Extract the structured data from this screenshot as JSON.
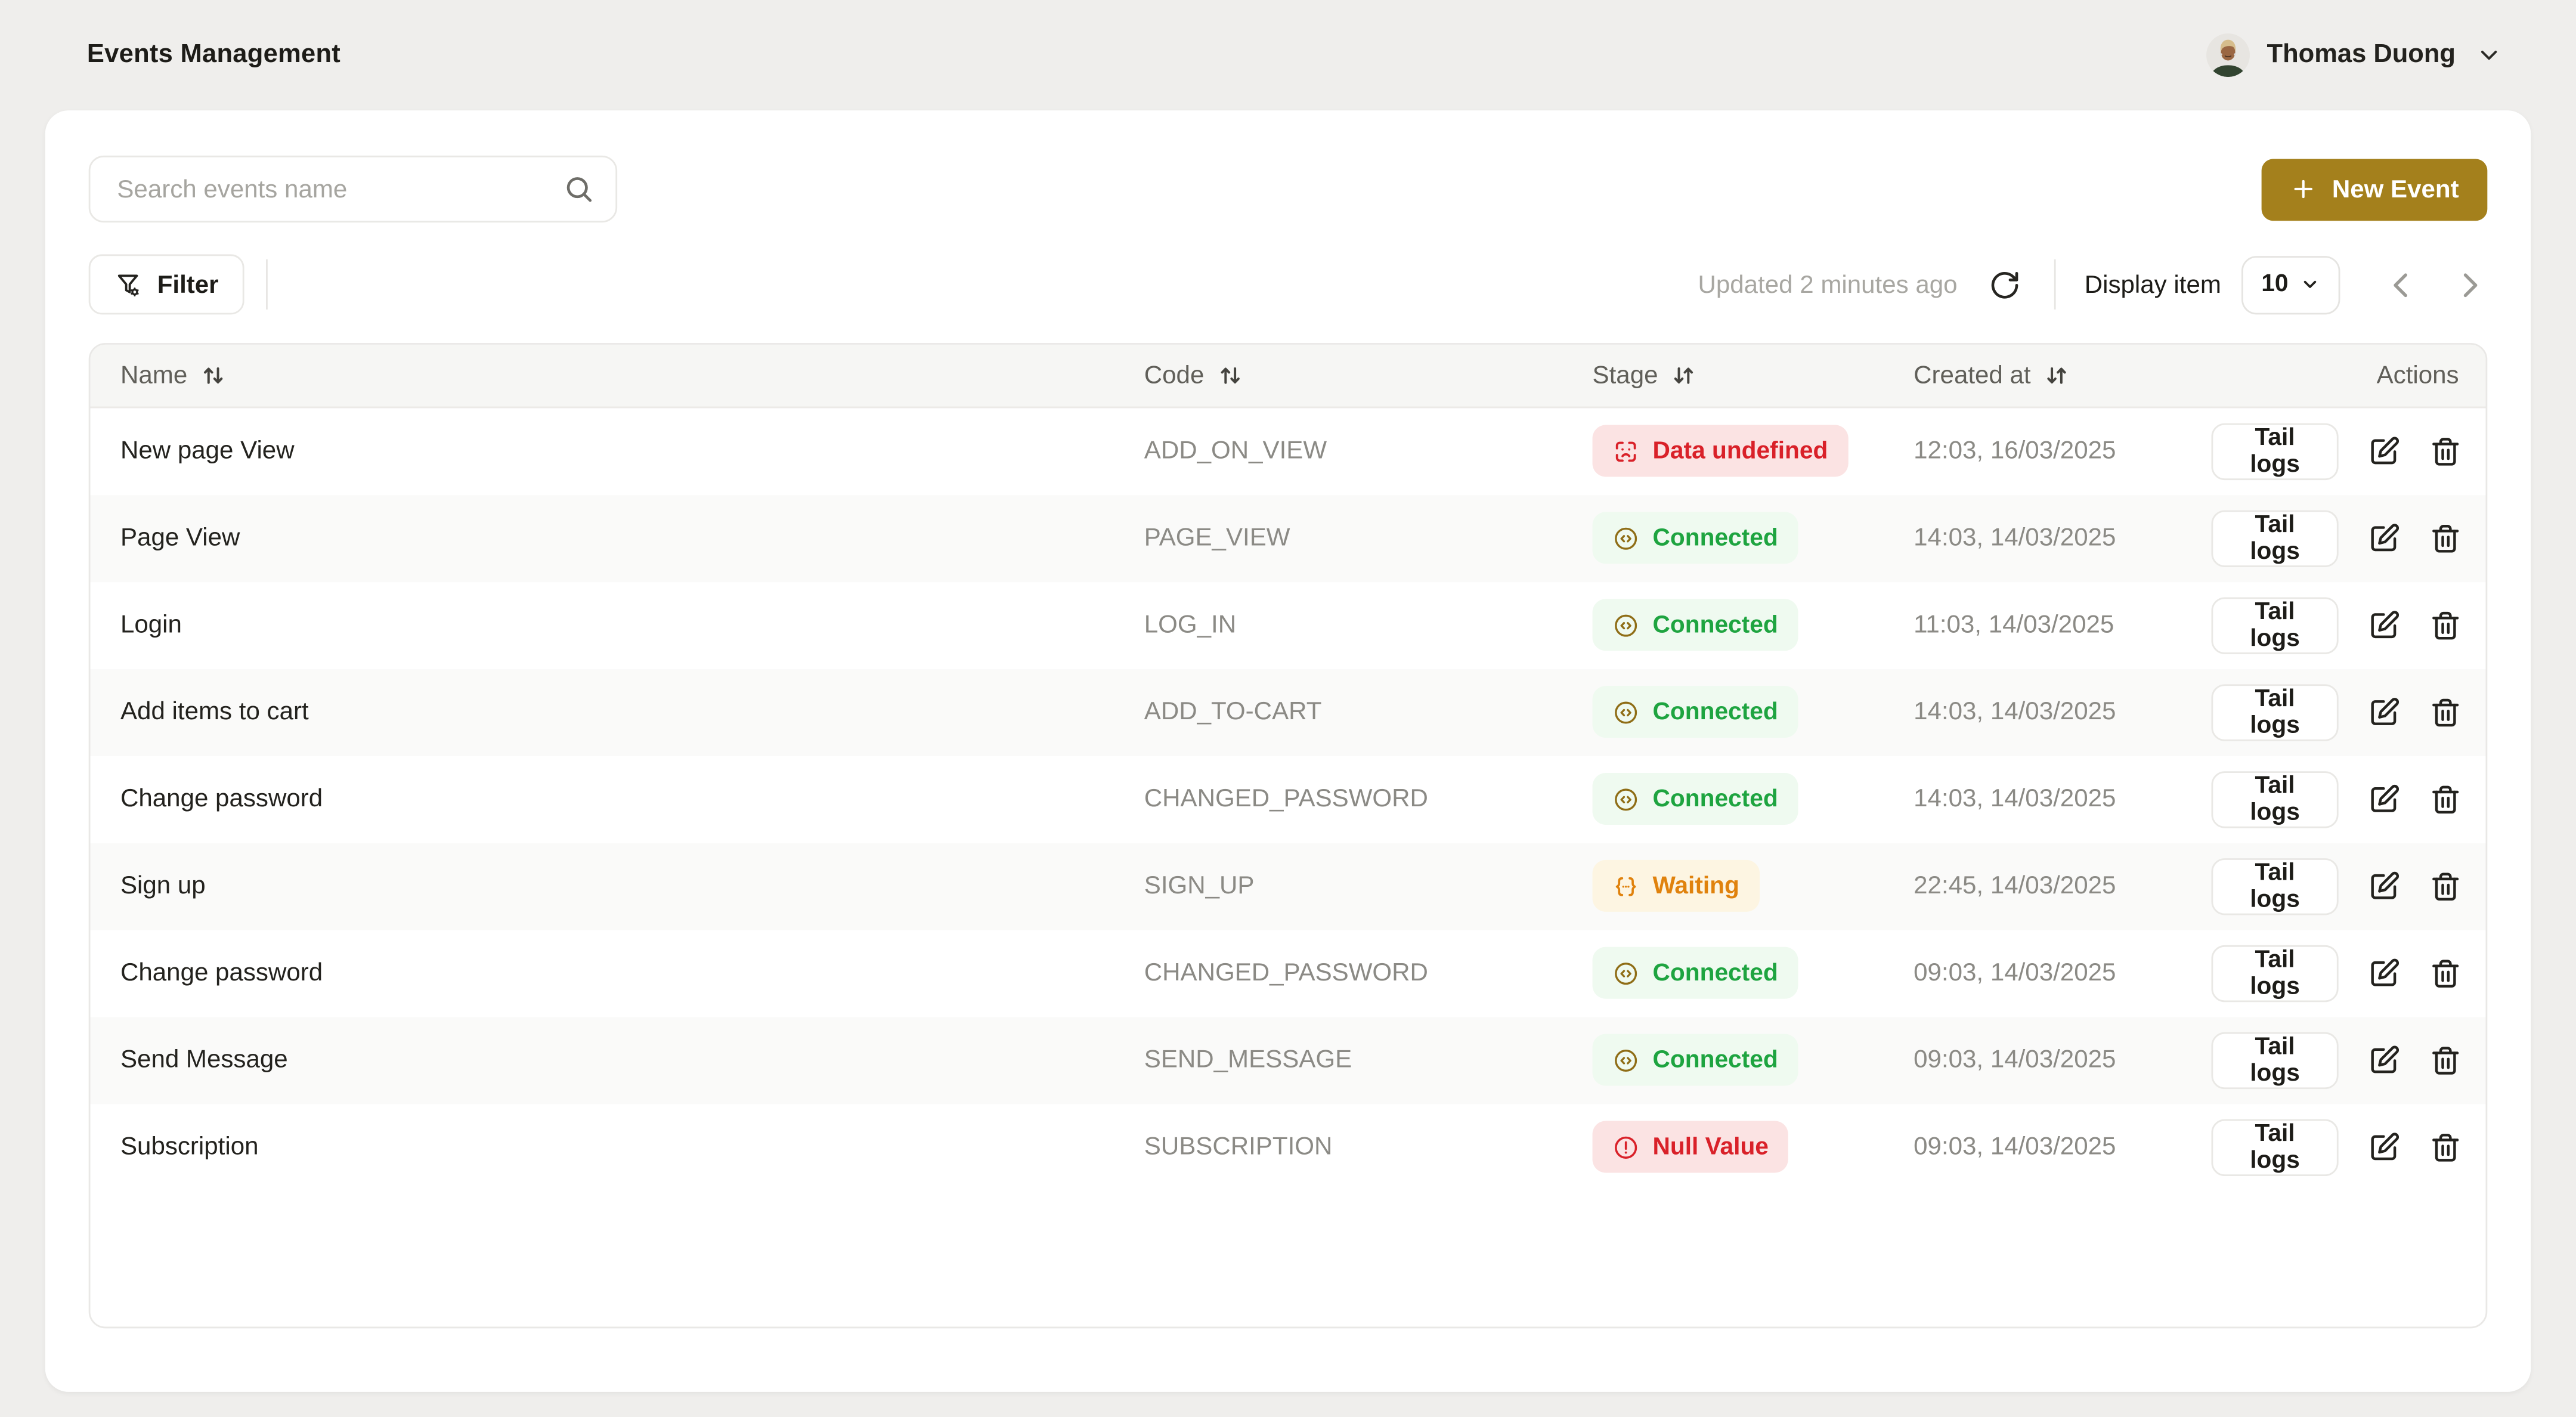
{
  "topbar": {
    "title": "Events Management",
    "user": {
      "name": "Thomas Duong",
      "menu_icon": "chevron-down-icon",
      "avatar_icon": "user-photo-avatar"
    }
  },
  "toolbar": {
    "search_placeholder": "Search events name",
    "search_icon": "search-icon",
    "new_event_label": "New Event",
    "new_event_icon": "plus-icon",
    "filter_label": "Filter",
    "filter_icon": "filter-settings-icon",
    "updated_text": "Updated 2 minutes ago",
    "refresh_icon": "refresh-icon",
    "display_item_label": "Display item",
    "page_size_value": "10",
    "pager_prev_icon": "chevron-left-icon",
    "pager_next_icon": "chevron-right-icon"
  },
  "table": {
    "columns": [
      {
        "label": "Name",
        "sortable": true,
        "sort_icon": "sort-up-down-icon"
      },
      {
        "label": "Code",
        "sortable": true,
        "sort_icon": "sort-up-down-icon"
      },
      {
        "label": "Stage",
        "sortable": true,
        "sort_icon": "sort-down-up-icon"
      },
      {
        "label": "Created at",
        "sortable": true,
        "sort_icon": "sort-down-up-icon"
      },
      {
        "label": "Actions",
        "sortable": false,
        "sort_icon": null
      }
    ],
    "row_action_label": "Tail logs",
    "row_action_icons": [
      "edit-icon",
      "trash-icon"
    ],
    "rows": [
      {
        "name": "New page View",
        "code": "ADD_ON_VIEW",
        "stage": {
          "label": "Data undefined",
          "status": "danger",
          "icon": "scan-face-frown-icon"
        },
        "created_at": "12:03, 16/03/2025"
      },
      {
        "name": "Page View",
        "code": "PAGE_VIEW",
        "stage": {
          "label": "Connected",
          "status": "success",
          "icon": "code-circle-icon"
        },
        "created_at": "14:03, 14/03/2025"
      },
      {
        "name": "Login",
        "code": "LOG_IN",
        "stage": {
          "label": "Connected",
          "status": "success",
          "icon": "code-circle-icon"
        },
        "created_at": "11:03, 14/03/2025"
      },
      {
        "name": "Add items to cart",
        "code": "ADD_TO-CART",
        "stage": {
          "label": "Connected",
          "status": "success",
          "icon": "code-circle-icon"
        },
        "created_at": "14:03, 14/03/2025"
      },
      {
        "name": "Change password",
        "code": "CHANGED_PASSWORD",
        "stage": {
          "label": "Connected",
          "status": "success",
          "icon": "code-circle-icon"
        },
        "created_at": "14:03, 14/03/2025"
      },
      {
        "name": "Sign up",
        "code": "SIGN_UP",
        "stage": {
          "label": "Waiting",
          "status": "warning",
          "icon": "braces-ellipsis-icon"
        },
        "created_at": "22:45, 14/03/2025"
      },
      {
        "name": "Change password",
        "code": "CHANGED_PASSWORD",
        "stage": {
          "label": "Connected",
          "status": "success",
          "icon": "code-circle-icon"
        },
        "created_at": "09:03, 14/03/2025"
      },
      {
        "name": "Send Message",
        "code": "SEND_MESSAGE",
        "stage": {
          "label": "Connected",
          "status": "success",
          "icon": "code-circle-icon"
        },
        "created_at": "09:03, 14/03/2025"
      },
      {
        "name": "Subscription",
        "code": "SUBSCRIPTION",
        "stage": {
          "label": "Null Value",
          "status": "danger",
          "icon": "alert-circle-icon"
        },
        "created_at": "09:03, 14/03/2025"
      }
    ]
  },
  "colors": {
    "page_bg": "#EFEEEC",
    "accent_gold": "#A4801C",
    "badge_icon_gold": "#8F6D16",
    "success_green": "#1EA440",
    "success_bg": "#EFFAF0",
    "danger_red": "#D92129",
    "danger_bg": "#FBE3E3",
    "warning_orange": "#E0820D",
    "warning_bg": "#FDF5E2"
  }
}
